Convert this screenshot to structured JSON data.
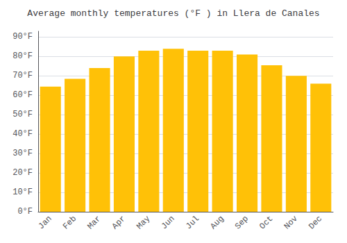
{
  "chart_data": {
    "type": "bar",
    "title": "Average monthly temperatures (°F ) in Llera de Canales",
    "categories": [
      "Jan",
      "Feb",
      "Mar",
      "Apr",
      "May",
      "Jun",
      "Jul",
      "Aug",
      "Sep",
      "Oct",
      "Nov",
      "Dec"
    ],
    "values": [
      64.5,
      68.5,
      74,
      80,
      83,
      84,
      83,
      83,
      81,
      75.5,
      70,
      66
    ],
    "color": "#FFC107",
    "ylim": [
      0,
      93
    ],
    "yticks": [
      {
        "value": 0,
        "label": "0°F"
      },
      {
        "value": 10,
        "label": "10°F"
      },
      {
        "value": 20,
        "label": "20°F"
      },
      {
        "value": 30,
        "label": "30°F"
      },
      {
        "value": 40,
        "label": "40°F"
      },
      {
        "value": 50,
        "label": "50°F"
      },
      {
        "value": 60,
        "label": "60°F"
      },
      {
        "value": 70,
        "label": "70°F"
      },
      {
        "value": 80,
        "label": "80°F"
      },
      {
        "value": 90,
        "label": "90°F"
      }
    ],
    "grid": true
  }
}
